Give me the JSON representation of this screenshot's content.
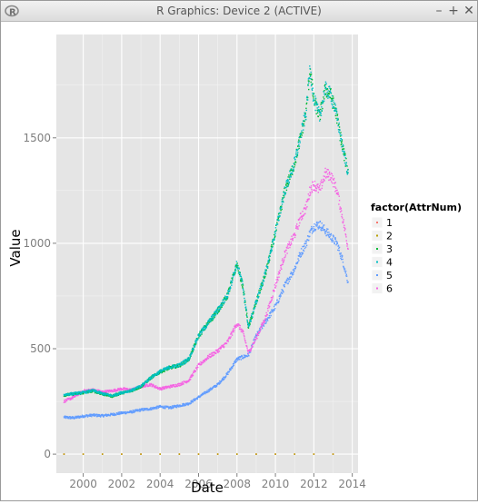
{
  "window": {
    "title": "R Graphics: Device 2 (ACTIVE)",
    "minimize_glyph": "–",
    "maximize_glyph": "+",
    "close_glyph": "✕",
    "app_icon": "r-logo-icon"
  },
  "chart_data": {
    "type": "scatter",
    "title": "",
    "xlabel": "Date",
    "ylabel": "Value",
    "xlim": [
      1998.6,
      2014.3
    ],
    "ylim": [
      -90,
      1990
    ],
    "x_ticks": [
      2000,
      2002,
      2004,
      2006,
      2008,
      2010,
      2012,
      2014
    ],
    "x_tick_labels": [
      "2000",
      "2002",
      "2004",
      "2006",
      "2008",
      "2010",
      "2012",
      "2014"
    ],
    "y_ticks": [
      0,
      500,
      1000,
      1500
    ],
    "y_tick_labels": [
      "0",
      "500",
      "1000",
      "1500"
    ],
    "grid": true,
    "panel_background": "#e5e5e5",
    "legend": {
      "title": "factor(AttrNum)",
      "placement": "right"
    },
    "series": [
      {
        "name": "1",
        "color": "#F8766D",
        "values_note": "",
        "x": [
          1999.0,
          2000.0,
          2001.0,
          2002.0,
          2003.0,
          2004.0,
          2005.0,
          2006.0,
          2007.0,
          2008.0,
          2009.0,
          2010.0,
          2011.0,
          2012.0,
          2013.0
        ],
        "y": [
          0,
          0,
          0,
          0,
          0,
          0,
          0,
          0,
          0,
          0,
          0,
          0,
          0,
          0,
          0
        ]
      },
      {
        "name": "2",
        "color": "#B79F00",
        "x": [
          1999.0,
          2000.0,
          2001.0,
          2002.0,
          2003.0,
          2004.0,
          2005.0,
          2006.0,
          2007.0,
          2008.0,
          2009.0,
          2010.0,
          2011.0,
          2012.0,
          2013.0
        ],
        "y": [
          0,
          0,
          0,
          0,
          0,
          0,
          0,
          0,
          0,
          0,
          0,
          0,
          0,
          0,
          0
        ]
      },
      {
        "name": "3",
        "color": "#00BA38",
        "x": [
          1999.0,
          1999.5,
          2000.0,
          2000.5,
          2001.0,
          2001.5,
          2002.0,
          2002.5,
          2003.0,
          2003.5,
          2004.0,
          2004.5,
          2005.0,
          2005.5,
          2006.0,
          2006.5,
          2007.0,
          2007.5,
          2008.0,
          2008.3,
          2008.6,
          2009.0,
          2009.5,
          2010.0,
          2010.5,
          2011.0,
          2011.3,
          2011.6,
          2011.8,
          2012.0,
          2012.3,
          2012.6,
          2012.9,
          2013.2,
          2013.5,
          2013.8
        ],
        "y": [
          280,
          285,
          290,
          300,
          285,
          275,
          290,
          300,
          320,
          360,
          390,
          410,
          420,
          450,
          560,
          620,
          680,
          750,
          900,
          800,
          600,
          720,
          860,
          1050,
          1250,
          1380,
          1500,
          1620,
          1830,
          1680,
          1600,
          1730,
          1700,
          1600,
          1450,
          1330
        ]
      },
      {
        "name": "4",
        "color": "#00BFC4",
        "x": [
          1999.0,
          1999.5,
          2000.0,
          2000.5,
          2001.0,
          2001.5,
          2002.0,
          2002.5,
          2003.0,
          2003.5,
          2004.0,
          2004.5,
          2005.0,
          2005.5,
          2006.0,
          2006.5,
          2007.0,
          2007.5,
          2008.0,
          2008.3,
          2008.6,
          2009.0,
          2009.5,
          2010.0,
          2010.5,
          2011.0,
          2011.3,
          2011.6,
          2011.8,
          2012.0,
          2012.3,
          2012.6,
          2012.9,
          2013.2,
          2013.5,
          2013.8
        ],
        "y": [
          282,
          287,
          292,
          302,
          287,
          277,
          292,
          302,
          322,
          362,
          392,
          412,
          422,
          452,
          562,
          622,
          682,
          752,
          902,
          802,
          602,
          722,
          862,
          1052,
          1252,
          1382,
          1502,
          1622,
          1832,
          1682,
          1602,
          1732,
          1702,
          1602,
          1452,
          1332
        ]
      },
      {
        "name": "5",
        "color": "#619CFF",
        "x": [
          1999.0,
          1999.5,
          2000.0,
          2000.5,
          2001.0,
          2001.5,
          2002.0,
          2002.5,
          2003.0,
          2003.5,
          2004.0,
          2004.5,
          2005.0,
          2005.5,
          2006.0,
          2006.5,
          2007.0,
          2007.5,
          2008.0,
          2008.3,
          2008.6,
          2009.0,
          2009.5,
          2010.0,
          2010.5,
          2011.0,
          2011.3,
          2011.6,
          2011.8,
          2012.0,
          2012.3,
          2012.6,
          2012.9,
          2013.2,
          2013.5,
          2013.8
        ],
        "y": [
          175,
          172,
          180,
          185,
          182,
          188,
          195,
          200,
          210,
          215,
          225,
          220,
          230,
          240,
          270,
          300,
          330,
          380,
          450,
          460,
          470,
          560,
          630,
          700,
          800,
          880,
          950,
          1000,
          1050,
          1080,
          1090,
          1060,
          1030,
          1000,
          920,
          810
        ]
      },
      {
        "name": "6",
        "color": "#F564E3",
        "x": [
          1999.0,
          1999.5,
          2000.0,
          2000.5,
          2001.0,
          2001.5,
          2002.0,
          2002.5,
          2003.0,
          2003.5,
          2004.0,
          2004.5,
          2005.0,
          2005.5,
          2006.0,
          2006.5,
          2007.0,
          2007.5,
          2008.0,
          2008.3,
          2008.6,
          2009.0,
          2009.5,
          2010.0,
          2010.5,
          2011.0,
          2011.3,
          2011.6,
          2011.8,
          2012.0,
          2012.3,
          2012.6,
          2012.9,
          2013.2,
          2013.5,
          2013.8
        ],
        "y": [
          250,
          270,
          300,
          305,
          295,
          300,
          310,
          305,
          320,
          330,
          310,
          320,
          330,
          350,
          420,
          460,
          490,
          530,
          620,
          580,
          480,
          550,
          650,
          800,
          950,
          1040,
          1120,
          1170,
          1250,
          1280,
          1250,
          1330,
          1320,
          1250,
          1120,
          970
        ]
      }
    ]
  }
}
